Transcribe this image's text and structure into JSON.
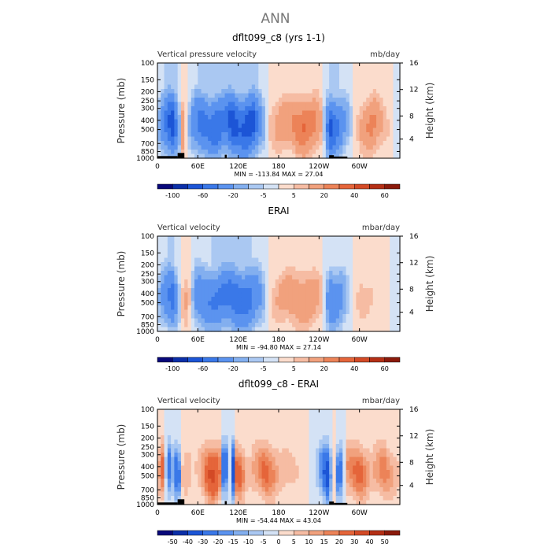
{
  "figure": {
    "title": "ANN"
  },
  "chart_data": [
    {
      "type": "heatmap",
      "title": "dflt099_c8 (yrs 1-1)",
      "left_label": "Vertical pressure velocity",
      "right_label": "mb/day",
      "ylabel": "Pressure (mb)",
      "y2label": "Height (km)",
      "xticks": [
        "0",
        "60E",
        "120E",
        "180",
        "120W",
        "60W"
      ],
      "yticks": [
        "100",
        "150",
        "200",
        "250",
        "300",
        "400",
        "500",
        "700",
        "850",
        "1000"
      ],
      "y2ticks": [
        "16",
        "12",
        "8",
        "4"
      ],
      "stats": "MIN = -113.84   MAX =  27.04",
      "colorbar_labels": [
        "-100",
        "-60",
        "-20",
        "-5",
        "5",
        "20",
        "40",
        "60"
      ],
      "levels": [
        -120,
        -100,
        -80,
        -60,
        -40,
        -20,
        -10,
        -5,
        0,
        5,
        10,
        20,
        30,
        40,
        50,
        60,
        70
      ],
      "profile": [
        {
          "lon": 0,
          "v": -5
        },
        {
          "lon": 10,
          "v": -40
        },
        {
          "lon": 22,
          "v": -80
        },
        {
          "lon": 30,
          "v": -30
        },
        {
          "lon": 38,
          "v": 20
        },
        {
          "lon": 45,
          "v": -5
        },
        {
          "lon": 55,
          "v": -35
        },
        {
          "lon": 65,
          "v": -50
        },
        {
          "lon": 75,
          "v": -45
        },
        {
          "lon": 88,
          "v": -60
        },
        {
          "lon": 100,
          "v": -45
        },
        {
          "lon": 112,
          "v": -80
        },
        {
          "lon": 122,
          "v": -60
        },
        {
          "lon": 140,
          "v": -80
        },
        {
          "lon": 150,
          "v": -35
        },
        {
          "lon": 165,
          "v": 5
        },
        {
          "lon": 180,
          "v": 15
        },
        {
          "lon": 200,
          "v": 20
        },
        {
          "lon": 215,
          "v": 32
        },
        {
          "lon": 235,
          "v": 22
        },
        {
          "lon": 245,
          "v": 8
        },
        {
          "lon": 257,
          "v": -70
        },
        {
          "lon": 270,
          "v": -40
        },
        {
          "lon": 285,
          "v": -10
        },
        {
          "lon": 300,
          "v": 10
        },
        {
          "lon": 318,
          "v": 25
        },
        {
          "lon": 335,
          "v": 10
        },
        {
          "lon": 360,
          "v": -5
        }
      ]
    },
    {
      "type": "heatmap",
      "title": "ERAI",
      "left_label": "Vertical velocity",
      "right_label": "mbar/day",
      "ylabel": "Pressure (mb)",
      "y2label": "Height (km)",
      "xticks": [
        "0",
        "60E",
        "120E",
        "180",
        "120W",
        "60W"
      ],
      "yticks": [
        "100",
        "150",
        "200",
        "250",
        "300",
        "400",
        "500",
        "700",
        "850",
        "1000"
      ],
      "y2ticks": [
        "16",
        "12",
        "8",
        "4"
      ],
      "stats": "MIN = -94.80   MAX =  27.14",
      "colorbar_labels": [
        "-100",
        "-60",
        "-20",
        "-5",
        "5",
        "20",
        "40",
        "60"
      ],
      "levels": [
        -120,
        -100,
        -80,
        -60,
        -40,
        -20,
        -10,
        -5,
        0,
        5,
        10,
        20,
        30,
        40,
        50,
        60,
        70
      ],
      "profile": [
        {
          "lon": 0,
          "v": -5
        },
        {
          "lon": 10,
          "v": -30
        },
        {
          "lon": 22,
          "v": -50
        },
        {
          "lon": 32,
          "v": -10
        },
        {
          "lon": 40,
          "v": 15
        },
        {
          "lon": 48,
          "v": 5
        },
        {
          "lon": 58,
          "v": -30
        },
        {
          "lon": 75,
          "v": -40
        },
        {
          "lon": 95,
          "v": -45
        },
        {
          "lon": 115,
          "v": -55
        },
        {
          "lon": 135,
          "v": -50
        },
        {
          "lon": 150,
          "v": -30
        },
        {
          "lon": 165,
          "v": 2
        },
        {
          "lon": 180,
          "v": 12
        },
        {
          "lon": 205,
          "v": 18
        },
        {
          "lon": 225,
          "v": 20
        },
        {
          "lon": 245,
          "v": 8
        },
        {
          "lon": 257,
          "v": -40
        },
        {
          "lon": 270,
          "v": -30
        },
        {
          "lon": 285,
          "v": -5
        },
        {
          "lon": 300,
          "v": 8
        },
        {
          "lon": 330,
          "v": 4
        },
        {
          "lon": 360,
          "v": -5
        }
      ]
    },
    {
      "type": "heatmap",
      "title": "dflt099_c8 - ERAI",
      "left_label": "Vertical velocity",
      "right_label": "mbar/day",
      "ylabel": "Pressure (mb)",
      "y2label": "Height (km)",
      "xticks": [
        "0",
        "60E",
        "120E",
        "180",
        "120W",
        "60W"
      ],
      "yticks": [
        "100",
        "150",
        "200",
        "250",
        "300",
        "400",
        "500",
        "700",
        "850",
        "1000"
      ],
      "y2ticks": [
        "16",
        "12",
        "8",
        "4"
      ],
      "stats": "MIN = -54.44   MAX =  43.04",
      "colorbar_labels": [
        "-50",
        "-40",
        "-30",
        "-20",
        "-15",
        "-10",
        "-5",
        "0",
        "5",
        "10",
        "15",
        "20",
        "30",
        "40",
        "50"
      ],
      "levels": [
        -60,
        -50,
        -40,
        -30,
        -20,
        -15,
        -10,
        -5,
        0,
        5,
        10,
        15,
        20,
        30,
        40,
        50,
        60
      ],
      "profile": [
        {
          "lon": 0,
          "v": 5
        },
        {
          "lon": 8,
          "v": 25
        },
        {
          "lon": 16,
          "v": -30
        },
        {
          "lon": 24,
          "v": -10
        },
        {
          "lon": 30,
          "v": -40
        },
        {
          "lon": 36,
          "v": 5
        },
        {
          "lon": 44,
          "v": 10
        },
        {
          "lon": 55,
          "v": 3
        },
        {
          "lon": 68,
          "v": 15
        },
        {
          "lon": 80,
          "v": 35
        },
        {
          "lon": 92,
          "v": 25
        },
        {
          "lon": 100,
          "v": -50
        },
        {
          "lon": 106,
          "v": 10
        },
        {
          "lon": 112,
          "v": -45
        },
        {
          "lon": 118,
          "v": 30
        },
        {
          "lon": 125,
          "v": 20
        },
        {
          "lon": 135,
          "v": 5
        },
        {
          "lon": 148,
          "v": 15
        },
        {
          "lon": 160,
          "v": 25
        },
        {
          "lon": 180,
          "v": 10
        },
        {
          "lon": 210,
          "v": 5
        },
        {
          "lon": 235,
          "v": -3
        },
        {
          "lon": 252,
          "v": -40
        },
        {
          "lon": 262,
          "v": 5
        },
        {
          "lon": 270,
          "v": -35
        },
        {
          "lon": 282,
          "v": 15
        },
        {
          "lon": 300,
          "v": 25
        },
        {
          "lon": 318,
          "v": 8
        },
        {
          "lon": 335,
          "v": 20
        },
        {
          "lon": 360,
          "v": 5
        }
      ]
    }
  ]
}
